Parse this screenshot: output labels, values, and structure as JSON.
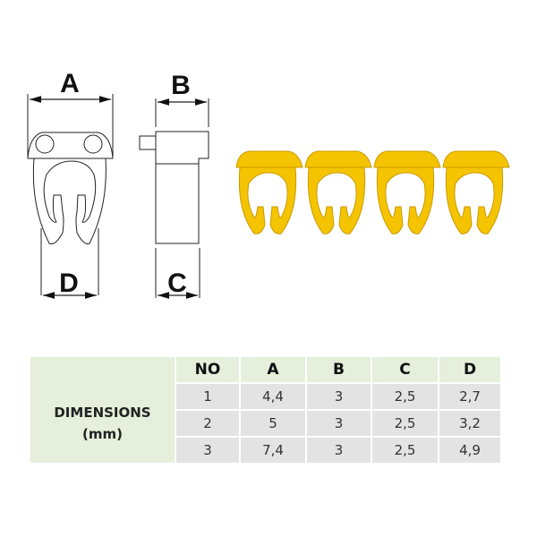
{
  "drawing": {
    "labels": {
      "a": "A",
      "b": "B",
      "c": "C",
      "d": "D"
    },
    "clip_color": "#f5c400",
    "clip_count": 4
  },
  "table": {
    "row_header": "DIMENSIONS",
    "row_header_unit": "(mm)",
    "columns": [
      "NO",
      "A",
      "B",
      "C",
      "D"
    ],
    "rows": [
      [
        "1",
        "4,4",
        "3",
        "2,5",
        "2,7"
      ],
      [
        "2",
        "5",
        "3",
        "2,5",
        "3,2"
      ],
      [
        "3",
        "7,4",
        "3",
        "2,5",
        "4,9"
      ]
    ],
    "header_color": "#e5efdb",
    "cell_color": "#e3e3e3"
  }
}
